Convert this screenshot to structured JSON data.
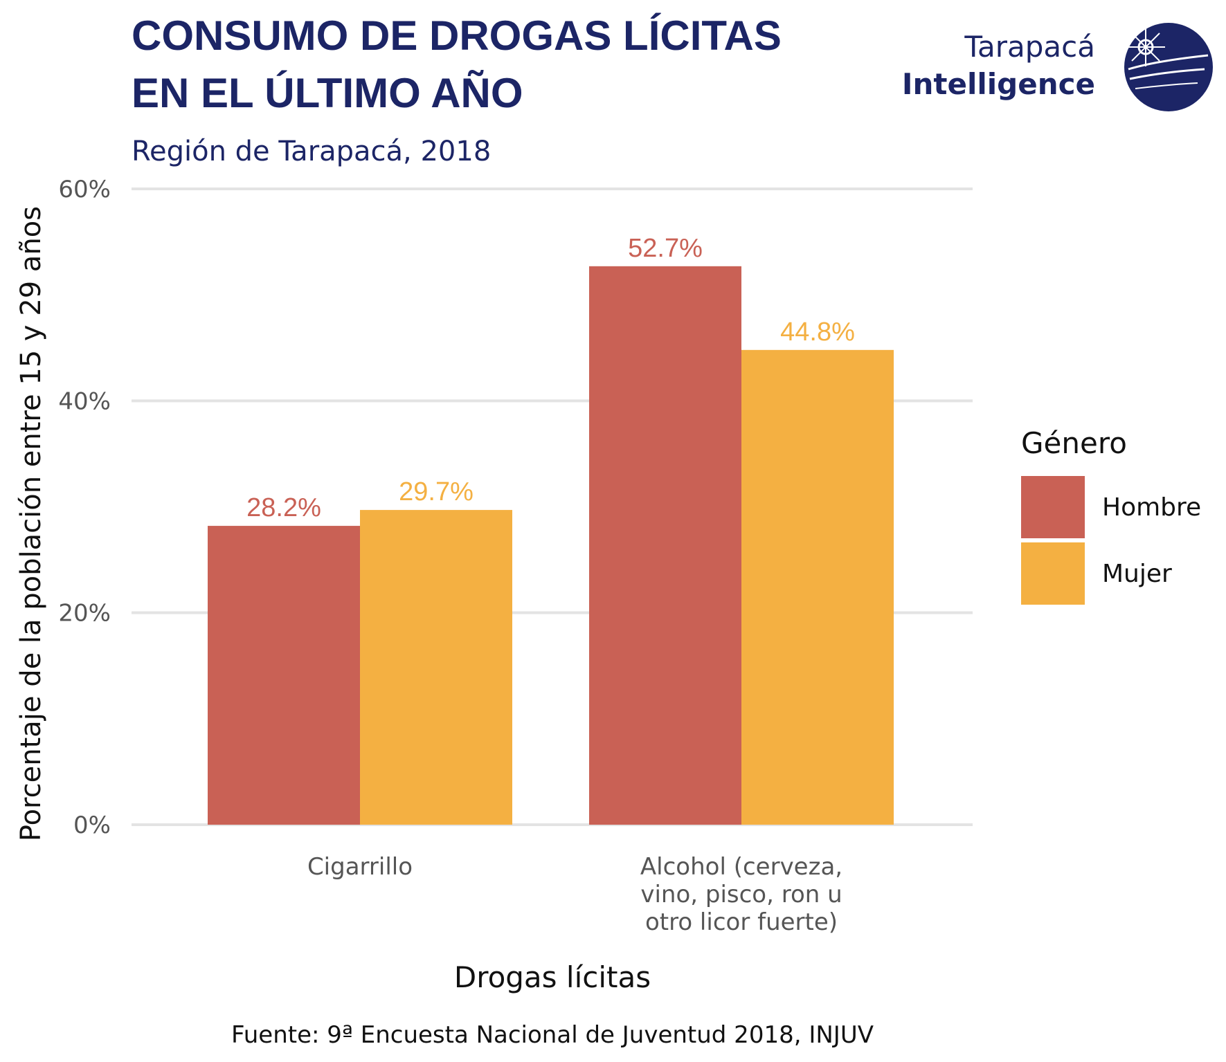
{
  "header": {
    "title_line1": "CONSUMO DE DROGAS LÍCITAS",
    "title_line2": "EN EL ÚLTIMO AÑO",
    "subtitle": "Región de Tarapacá, 2018"
  },
  "logo": {
    "line1": "Tarapacá",
    "line2": "Intelligence",
    "icon": "globe-icon"
  },
  "caption": "Fuente: 9ª Encuesta Nacional de Juventud 2018, INJUV",
  "colors": {
    "hombre": "#c96155",
    "mujer": "#f4b042",
    "grid": "#e3e3e3",
    "navy": "#1c2566"
  },
  "chart_data": {
    "type": "bar",
    "categories": [
      [
        "Cigarrillo"
      ],
      [
        "Alcohol (cerveza,",
        "vino, pisco, ron u",
        "otro licor fuerte)"
      ]
    ],
    "series": [
      {
        "name": "Hombre",
        "values": [
          28.2,
          52.7
        ],
        "labels": [
          "28.2%",
          "52.7%"
        ]
      },
      {
        "name": "Mujer",
        "values": [
          29.7,
          44.8
        ],
        "labels": [
          "29.7%",
          "44.8%"
        ]
      }
    ],
    "xlabel": "Drogas lícitas",
    "ylabel": "Porcentaje de la población entre 15 y 29 años",
    "yticks": [
      0,
      20,
      40,
      60
    ],
    "ytick_labels": [
      "0%",
      "20%",
      "40%",
      "60%"
    ],
    "ylim": [
      0,
      60
    ],
    "legend_title": "Género",
    "legend_position": "right",
    "grid": true
  }
}
